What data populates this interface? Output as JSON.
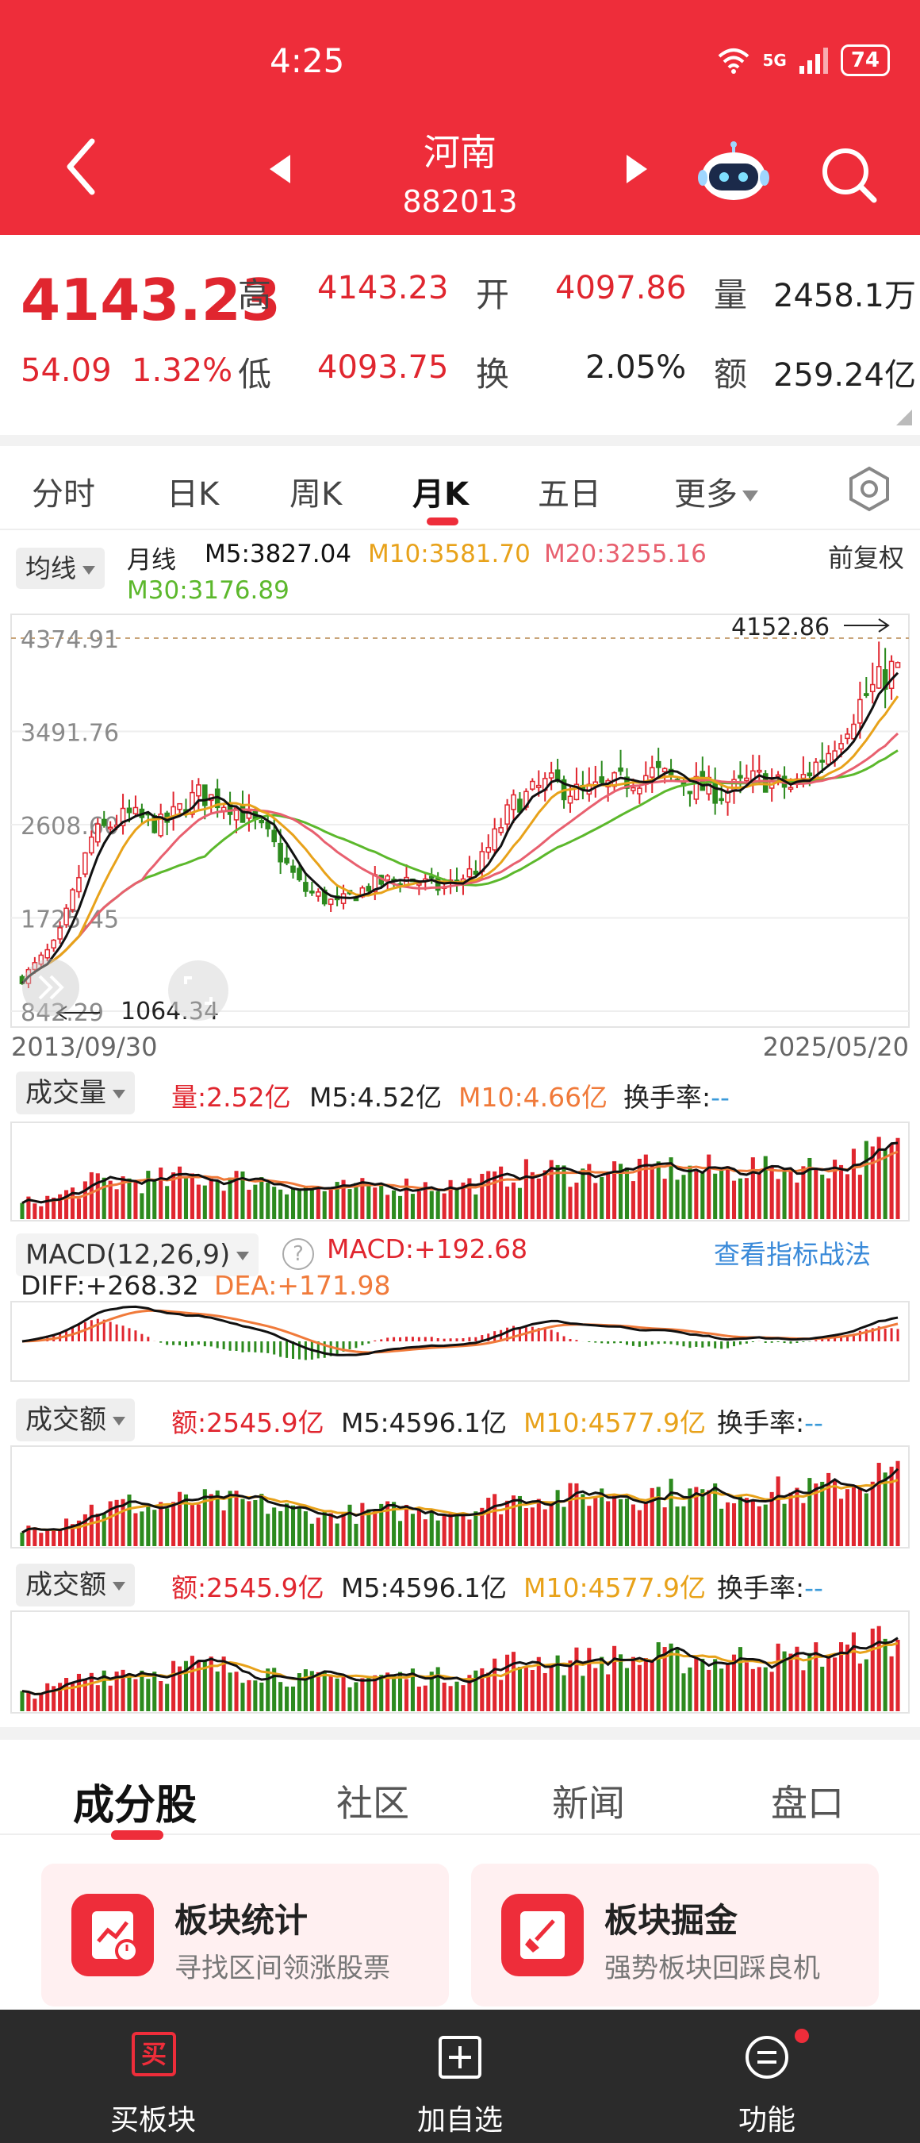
{
  "status_bar": {
    "time": "4:25",
    "signal": "5G",
    "wifi": "6",
    "battery": "74"
  },
  "nav": {
    "title": "河南",
    "code": "882013"
  },
  "quote": {
    "price": "4143.23",
    "change": "54.09",
    "change_pct": "1.32%",
    "high_label": "高",
    "high": "4143.23",
    "open_label": "开",
    "open": "4097.86",
    "volume_label": "量",
    "volume": "2458.1万",
    "low_label": "低",
    "low": "4093.75",
    "turnover_label": "换",
    "turnover": "2.05%",
    "amount_label": "额",
    "amount": "259.24亿"
  },
  "tabs": [
    "分时",
    "日K",
    "周K",
    "月K",
    "五日",
    "更多"
  ],
  "active_tab": "月K",
  "chart": {
    "ma_selector": "均线",
    "period": "月线",
    "ma5": "M5:3827.04",
    "ma10": "M10:3581.70",
    "ma20": "M20:3255.16",
    "ma30": "M30:3176.89",
    "adjust": "前复权",
    "high_mark": "4152.86",
    "low_mark": "1064.34",
    "start_date": "2013/09/30",
    "end_date": "2025/05/20",
    "colors": {
      "ma5": "#111111",
      "ma10": "#e8a21a",
      "ma20": "#e8606f",
      "ma30": "#5cb82c",
      "up": "#e0262f",
      "down": "#2c8a1e"
    }
  },
  "chart_data": {
    "type": "candlestick",
    "y_ticks": [
      "4374.91",
      "3491.76",
      "2608.60",
      "1725.45",
      "842.29"
    ],
    "ylim": [
      842.29,
      4374.91
    ],
    "x_range": [
      "2013/09/30",
      "2025/05/20"
    ],
    "trend_close": [
      1150,
      1500,
      2500,
      2700,
      2600,
      2900,
      2800,
      2500,
      2000,
      1850,
      2050,
      2100,
      2000,
      2200,
      2800,
      3000,
      2900,
      3000,
      3100,
      3000,
      2900,
      3050,
      2950,
      3300,
      3800,
      4143
    ]
  },
  "volume_panel": {
    "selector": "成交量",
    "vol": "量:2.52亿",
    "m5": "M5:4.52亿",
    "m10": "M10:4.66亿",
    "turnover": "换手率:",
    "turnover_val": "--"
  },
  "macd_panel": {
    "selector": "MACD(12,26,9)",
    "help": "?",
    "macd": "MACD:+192.68",
    "link": "查看指标战法",
    "diff": "DIFF:+268.32",
    "dea": "DEA:+171.98"
  },
  "amount_panel": {
    "selector": "成交额",
    "amt": "额:2545.9亿",
    "m5": "M5:4596.1亿",
    "m10": "M10:4577.9亿",
    "turnover": "换手率:",
    "turnover_val": "--"
  },
  "content_tabs": [
    "成分股",
    "社区",
    "新闻",
    "盘口"
  ],
  "cards": [
    {
      "title": "板块统计",
      "subtitle": "寻找区间领涨股票"
    },
    {
      "title": "板块掘金",
      "subtitle": "强势板块回踩良机"
    }
  ],
  "bottom_bar": {
    "buy": {
      "icon_text": "买",
      "label": "买板块"
    },
    "add": {
      "label": "加自选"
    },
    "func": {
      "label": "功能"
    }
  }
}
